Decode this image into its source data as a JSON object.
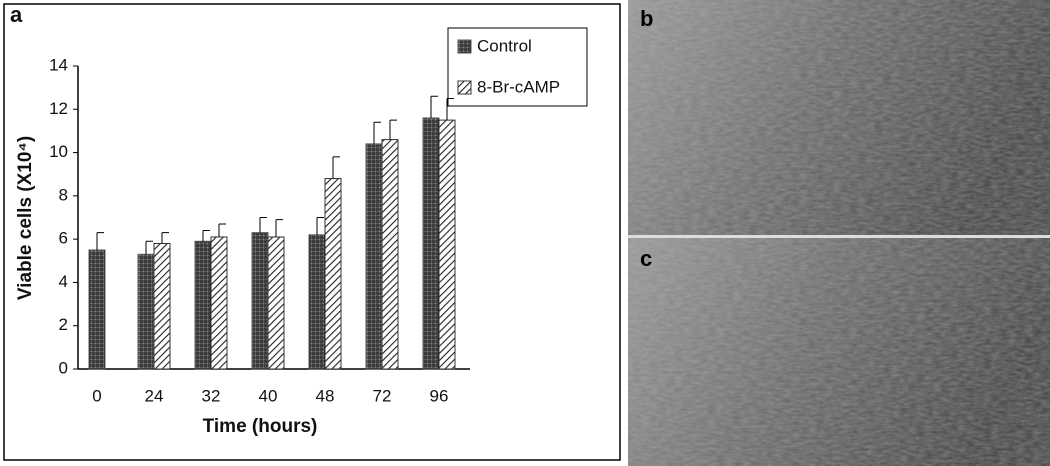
{
  "chart_data": {
    "type": "bar",
    "panel_label": "a",
    "xlabel": "Time (hours)",
    "ylabel": "Viable cells (X10⁴)",
    "categories": [
      "0",
      "24",
      "32",
      "40",
      "48",
      "72",
      "96"
    ],
    "series": [
      {
        "name": "Control",
        "color": "#555555",
        "values": [
          5.5,
          5.3,
          5.9,
          6.3,
          6.2,
          10.4,
          11.6
        ],
        "errors": [
          0.8,
          0.6,
          0.5,
          0.7,
          0.8,
          1.0,
          1.0
        ]
      },
      {
        "name": "8-Br-cAMP",
        "color": "#333333",
        "values": [
          null,
          5.8,
          6.1,
          6.1,
          8.8,
          10.6,
          11.5
        ],
        "errors": [
          null,
          0.5,
          0.6,
          0.8,
          1.0,
          0.9,
          1.0
        ]
      }
    ],
    "ylim": [
      0,
      14
    ],
    "yticks": [
      0,
      2,
      4,
      6,
      8,
      10,
      12,
      14
    ],
    "legend": "top-right"
  },
  "images": [
    {
      "label": "b"
    },
    {
      "label": "c"
    }
  ]
}
